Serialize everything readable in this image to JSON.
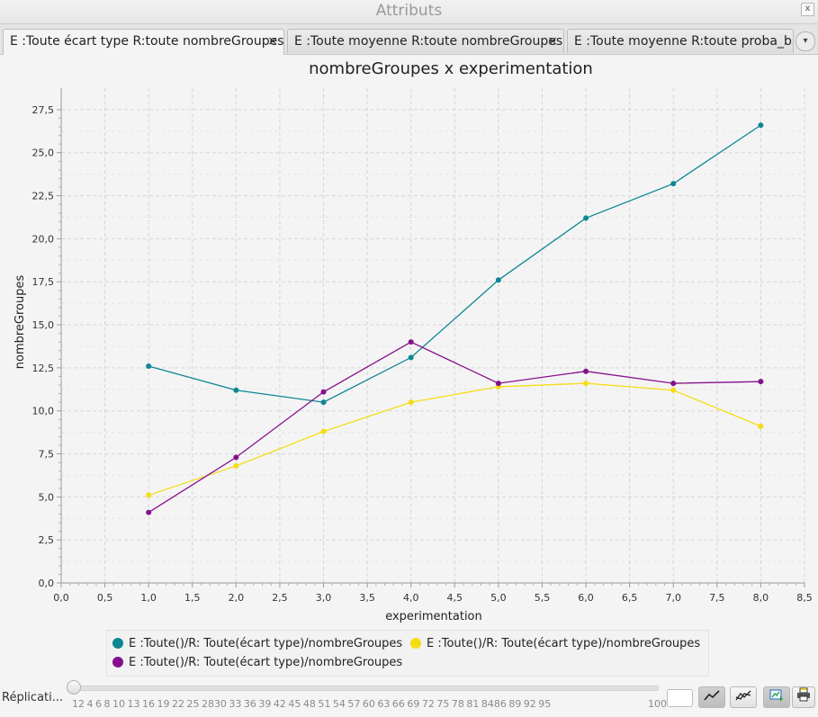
{
  "window": {
    "title": "Attributs",
    "close_glyph": "x"
  },
  "tabs": [
    {
      "label": "E :Toute écart type R:toute nombreGroupes",
      "close": "×",
      "active": true
    },
    {
      "label": "E :Toute moyenne R:toute nombreGroupes",
      "close": "×",
      "active": false
    },
    {
      "label": "E :Toute moyenne R:toute proba_birth",
      "close": "",
      "active": false
    }
  ],
  "tab_menu_glyph": "▾",
  "chart_data": {
    "type": "line",
    "title": "nombreGroupes x experimentation",
    "xlabel": "experimentation",
    "ylabel": "nombreGroupes",
    "xlim": [
      0,
      8.5
    ],
    "ylim": [
      0,
      28.75
    ],
    "x_ticks": [
      "0,0",
      "0,5",
      "1,0",
      "1,5",
      "2,0",
      "2,5",
      "3,0",
      "3,5",
      "4,0",
      "4,5",
      "5,0",
      "5,5",
      "6,0",
      "6,5",
      "7,0",
      "7,5",
      "8,0",
      "8,5"
    ],
    "x_tick_values": [
      0,
      0.5,
      1,
      1.5,
      2,
      2.5,
      3,
      3.5,
      4,
      4.5,
      5,
      5.5,
      6,
      6.5,
      7,
      7.5,
      8,
      8.5
    ],
    "y_ticks": [
      "0,0",
      "2,5",
      "5,0",
      "7,5",
      "10,0",
      "12,5",
      "15,0",
      "17,5",
      "20,0",
      "22,5",
      "25,0",
      "27,5"
    ],
    "y_tick_values": [
      0,
      2.5,
      5,
      7.5,
      10,
      12.5,
      15,
      17.5,
      20,
      22.5,
      25,
      27.5
    ],
    "grid": true,
    "x": [
      1,
      2,
      3,
      4,
      5,
      6,
      7,
      8
    ],
    "series": [
      {
        "name": "E :Toute()/R: Toute(écart type)/nombreGroupes",
        "color": "#0e8793",
        "values": [
          12.6,
          11.2,
          10.5,
          13.1,
          17.6,
          21.2,
          23.2,
          26.6
        ]
      },
      {
        "name": "E :Toute()/R: Toute(écart type)/nombreGroupes",
        "color": "#f5dd14",
        "values": [
          5.1,
          6.8,
          8.8,
          10.5,
          11.4,
          11.6,
          11.2,
          9.1
        ]
      },
      {
        "name": "E :Toute()/R: Toute(écart type)/nombreGroupes",
        "color": "#86108c",
        "values": [
          4.1,
          7.3,
          11.1,
          14.0,
          11.6,
          12.3,
          11.6,
          11.7
        ]
      }
    ],
    "legend_position": "bottom"
  },
  "replications": {
    "label": "Réplicati...",
    "ticks": "12 4 6 8 10 13 16 19 22 25 2830 33 36 39 42 45 48 51 54 57 60 63 66 69 72 75 78 81 8486 89 92 95",
    "max_label": "100",
    "value": 0,
    "input_value": ""
  },
  "toolbar": {
    "line_mode_icon": "line-chart-icon",
    "multi_line_icon": "multi-line-chart-icon",
    "export_icon": "export-image-icon",
    "print_icon": "print-icon"
  }
}
